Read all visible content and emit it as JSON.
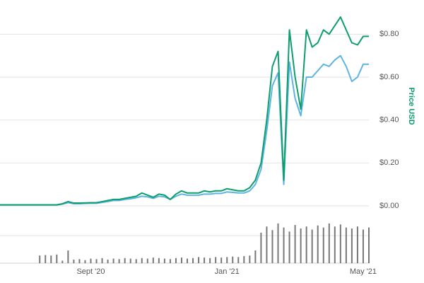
{
  "chart_data": [
    {
      "type": "line",
      "categories": [
        null,
        null,
        null,
        null,
        null,
        null,
        null,
        null,
        null,
        null,
        null,
        null,
        null,
        null,
        null,
        null,
        "Sept '20",
        null,
        null,
        null,
        null,
        null,
        null,
        null,
        null,
        null,
        null,
        null,
        null,
        null,
        null,
        null,
        null,
        null,
        null,
        null,
        null,
        null,
        null,
        null,
        "Jan '21",
        null,
        null,
        null,
        null,
        null,
        null,
        null,
        null,
        null,
        null,
        null,
        null,
        null,
        null,
        null,
        null,
        null,
        null,
        null,
        null,
        null,
        null,
        null,
        "May '21",
        null
      ],
      "series": [
        {
          "color": "#5db4e3",
          "values": [
            0.004,
            0.004,
            0.004,
            0.004,
            0.004,
            0.004,
            0.004,
            0.004,
            0.004,
            0.004,
            0.004,
            0.008,
            0.015,
            0.01,
            0.01,
            0.011,
            0.012,
            0.012,
            0.016,
            0.02,
            0.025,
            0.025,
            0.03,
            0.033,
            0.038,
            0.045,
            0.042,
            0.035,
            0.045,
            0.042,
            0.03,
            0.045,
            0.055,
            0.05,
            0.05,
            0.05,
            0.055,
            0.055,
            0.058,
            0.058,
            0.065,
            0.063,
            0.06,
            0.06,
            0.07,
            0.1,
            0.17,
            0.35,
            0.56,
            0.62,
            0.1,
            0.67,
            0.5,
            0.42,
            0.6,
            0.6,
            0.63,
            0.66,
            0.65,
            0.68,
            0.7,
            0.65,
            0.58,
            0.6,
            0.66,
            0.66
          ]
        },
        {
          "color": "#0d9e6b",
          "values": [
            0.005,
            0.005,
            0.005,
            0.005,
            0.005,
            0.005,
            0.005,
            0.005,
            0.005,
            0.005,
            0.005,
            0.01,
            0.02,
            0.013,
            0.013,
            0.014,
            0.015,
            0.015,
            0.02,
            0.025,
            0.03,
            0.03,
            0.035,
            0.04,
            0.045,
            0.06,
            0.05,
            0.04,
            0.055,
            0.05,
            0.03,
            0.055,
            0.07,
            0.06,
            0.06,
            0.06,
            0.07,
            0.065,
            0.07,
            0.07,
            0.08,
            0.075,
            0.07,
            0.07,
            0.085,
            0.12,
            0.2,
            0.4,
            0.65,
            0.72,
            0.12,
            0.82,
            0.6,
            0.45,
            0.82,
            0.74,
            0.76,
            0.82,
            0.8,
            0.84,
            0.88,
            0.82,
            0.76,
            0.75,
            0.79,
            0.79
          ]
        }
      ],
      "ylim": [
        0,
        0.9
      ],
      "yticks": [
        {
          "value": 0,
          "label": "$0.00"
        },
        {
          "value": 0.2,
          "label": "$0.20"
        },
        {
          "value": 0.4,
          "label": "$0.40"
        },
        {
          "value": 0.6,
          "label": "$0.60"
        },
        {
          "value": 0.8,
          "label": "$0.80"
        }
      ],
      "y_axis_label": "Price USD",
      "y_axis_label_color": "#0d9e6b",
      "grid": true
    },
    {
      "type": "bar",
      "color": "#777777",
      "values": [
        0,
        0,
        0,
        0,
        0,
        0,
        0,
        15,
        16,
        15,
        17,
        5,
        25,
        7,
        8,
        6,
        9,
        8,
        10,
        7,
        9,
        8,
        10,
        9,
        8,
        10,
        9,
        11,
        10,
        9,
        8,
        10,
        11,
        9,
        10,
        12,
        11,
        10,
        12,
        11,
        12,
        13,
        12,
        14,
        15,
        25,
        60,
        72,
        65,
        78,
        70,
        62,
        75,
        68,
        72,
        66,
        74,
        70,
        78,
        72,
        76,
        70,
        68,
        72,
        66,
        70
      ],
      "ylim": [
        0,
        100
      ]
    }
  ]
}
